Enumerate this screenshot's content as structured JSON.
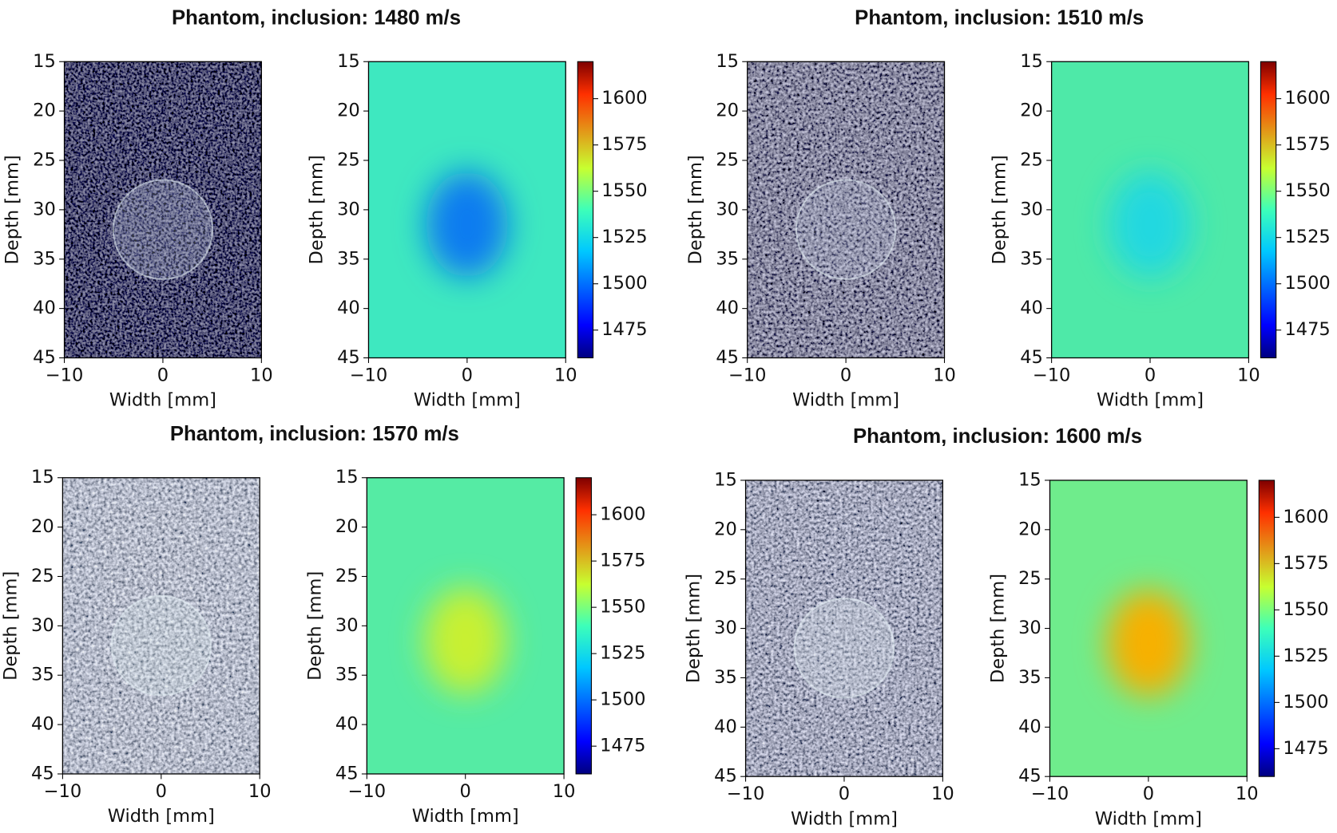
{
  "chart_data": [
    {
      "type": "heatmap",
      "title": "Phantom, inclusion: 1480 m/s",
      "xlabel": "Width [mm]",
      "ylabel": "Depth [mm]",
      "xlim": [
        -10,
        10
      ],
      "xticks": [
        {
          "value": -10,
          "label": "−10"
        },
        0,
        10
      ],
      "ylim": [
        15,
        45
      ],
      "yticks": [
        15,
        20,
        25,
        30,
        35,
        40,
        45
      ],
      "colorbar": {
        "lim": [
          1460,
          1620
        ],
        "ticks": [
          1475,
          1500,
          1525,
          1550,
          1575,
          1600
        ]
      }
    },
    {
      "type": "heatmap",
      "title": "Phantom, inclusion: 1510 m/s",
      "xlabel": "Width [mm]",
      "ylabel": "Depth [mm]",
      "xlim": [
        -10,
        10
      ],
      "xticks": [
        {
          "value": -10,
          "label": "−10"
        },
        0,
        10
      ],
      "ylim": [
        15,
        45
      ],
      "yticks": [
        15,
        20,
        25,
        30,
        35,
        40,
        45
      ],
      "colorbar": {
        "lim": [
          1460,
          1620
        ],
        "ticks": [
          1475,
          1500,
          1525,
          1550,
          1575,
          1600
        ]
      }
    },
    {
      "type": "heatmap",
      "title": "Phantom, inclusion: 1570 m/s",
      "xlabel": "Width [mm]",
      "ylabel": "Depth [mm]",
      "xlim": [
        -10,
        10
      ],
      "xticks": [
        {
          "value": -10,
          "label": "−10"
        },
        0,
        10
      ],
      "ylim": [
        15,
        45
      ],
      "yticks": [
        15,
        20,
        25,
        30,
        35,
        40,
        45
      ],
      "colorbar": {
        "lim": [
          1460,
          1620
        ],
        "ticks": [
          1475,
          1500,
          1525,
          1550,
          1575,
          1600
        ]
      }
    },
    {
      "type": "heatmap",
      "title": "Phantom, inclusion: 1600 m/s",
      "xlabel": "Width [mm]",
      "ylabel": "Depth [mm]",
      "xlim": [
        -10,
        10
      ],
      "xticks": [
        {
          "value": -10,
          "label": "−10"
        },
        0,
        10
      ],
      "ylim": [
        15,
        45
      ],
      "yticks": [
        15,
        20,
        25,
        30,
        35,
        40,
        45
      ],
      "colorbar": {
        "lim": [
          1460,
          1620
        ],
        "ticks": [
          1475,
          1500,
          1525,
          1550,
          1575,
          1600
        ]
      }
    }
  ]
}
